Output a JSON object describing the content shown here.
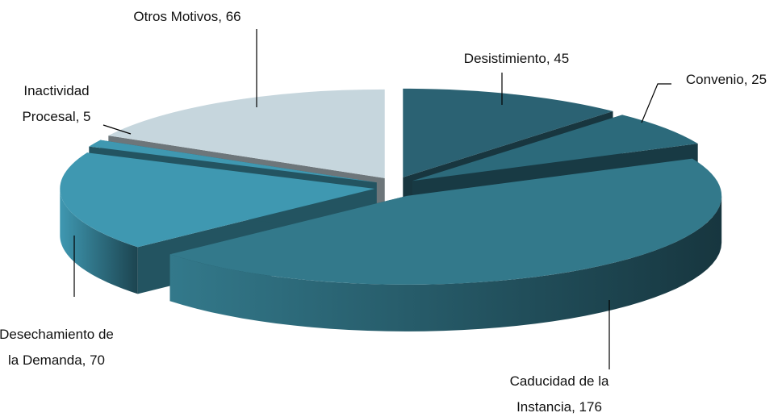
{
  "chart_data": {
    "type": "pie",
    "value_labels": [
      "Desistimiento, 45",
      "Convenio, 25",
      "Caducidad de la\nInstancia, 176",
      "Desechamiento de\nla Demanda, 70",
      "Inactividad\nProcesal, 5",
      "Otros Motivos, 66"
    ],
    "values": [
      45,
      25,
      176,
      70,
      5,
      66
    ],
    "colors": [
      "#2b6273",
      "#2c6a7b",
      "#33798b",
      "#3f98b1",
      "#3f98b1",
      "#c6d6dd"
    ]
  }
}
